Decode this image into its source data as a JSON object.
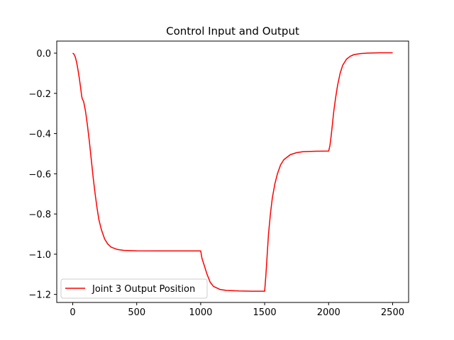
{
  "chart_data": {
    "type": "line",
    "title": "Control Input and Output",
    "xlabel": "",
    "ylabel": "",
    "xlim": [
      -125,
      2625
    ],
    "ylim": [
      -1.24,
      0.06
    ],
    "grid": false,
    "legend_position": "lower-left",
    "x_ticks": [
      0,
      500,
      1000,
      1500,
      2000,
      2500
    ],
    "x_tick_labels": [
      "0",
      "500",
      "1000",
      "1500",
      "2000",
      "2500"
    ],
    "y_ticks": [
      0.0,
      -0.2,
      -0.4,
      -0.6,
      -0.8,
      -1.0,
      -1.2
    ],
    "y_tick_labels": [
      "0.0",
      "−0.2",
      "−0.4",
      "−0.6",
      "−0.8",
      "−1.0",
      "−1.2"
    ],
    "series": [
      {
        "name": "Joint 3 Output Position",
        "color": "#ff0000",
        "points": [
          [
            0,
            0.0
          ],
          [
            10,
            -0.005
          ],
          [
            20,
            -0.02
          ],
          [
            30,
            -0.045
          ],
          [
            40,
            -0.08
          ],
          [
            50,
            -0.12
          ],
          [
            60,
            -0.165
          ],
          [
            70,
            -0.215
          ],
          [
            75,
            -0.228
          ],
          [
            85,
            -0.24
          ],
          [
            100,
            -0.29
          ],
          [
            115,
            -0.36
          ],
          [
            130,
            -0.44
          ],
          [
            145,
            -0.53
          ],
          [
            160,
            -0.62
          ],
          [
            175,
            -0.7
          ],
          [
            190,
            -0.77
          ],
          [
            205,
            -0.83
          ],
          [
            225,
            -0.88
          ],
          [
            250,
            -0.925
          ],
          [
            275,
            -0.95
          ],
          [
            300,
            -0.965
          ],
          [
            350,
            -0.977
          ],
          [
            400,
            -0.981
          ],
          [
            500,
            -0.983
          ],
          [
            700,
            -0.984
          ],
          [
            900,
            -0.984
          ],
          [
            1000,
            -0.984
          ],
          [
            1010,
            -1.02
          ],
          [
            1030,
            -1.06
          ],
          [
            1050,
            -1.1
          ],
          [
            1075,
            -1.14
          ],
          [
            1100,
            -1.16
          ],
          [
            1150,
            -1.175
          ],
          [
            1200,
            -1.18
          ],
          [
            1300,
            -1.183
          ],
          [
            1400,
            -1.184
          ],
          [
            1500,
            -1.184
          ],
          [
            1510,
            -1.1
          ],
          [
            1520,
            -1.0
          ],
          [
            1530,
            -0.9
          ],
          [
            1545,
            -0.8
          ],
          [
            1560,
            -0.72
          ],
          [
            1580,
            -0.65
          ],
          [
            1600,
            -0.6
          ],
          [
            1625,
            -0.555
          ],
          [
            1650,
            -0.53
          ],
          [
            1700,
            -0.505
          ],
          [
            1750,
            -0.495
          ],
          [
            1800,
            -0.49
          ],
          [
            1900,
            -0.488
          ],
          [
            2000,
            -0.487
          ],
          [
            2010,
            -0.46
          ],
          [
            2020,
            -0.41
          ],
          [
            2030,
            -0.35
          ],
          [
            2040,
            -0.29
          ],
          [
            2055,
            -0.22
          ],
          [
            2070,
            -0.16
          ],
          [
            2090,
            -0.1
          ],
          [
            2110,
            -0.06
          ],
          [
            2140,
            -0.03
          ],
          [
            2170,
            -0.015
          ],
          [
            2200,
            -0.007
          ],
          [
            2250,
            -0.002
          ],
          [
            2300,
            0.0
          ],
          [
            2400,
            0.002
          ],
          [
            2500,
            0.002
          ]
        ]
      }
    ]
  }
}
